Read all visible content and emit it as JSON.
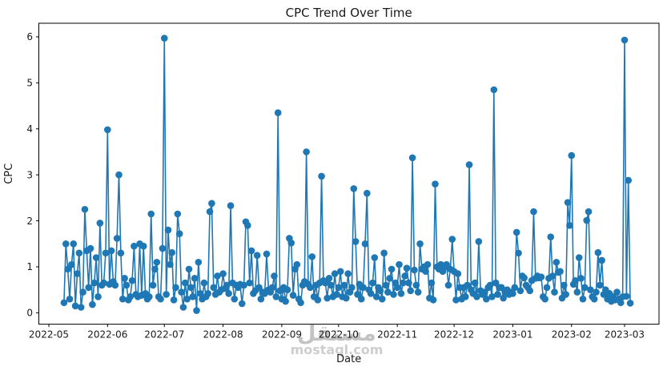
{
  "watermark": {
    "line1": "مستقل",
    "line2": "mostaql.com"
  },
  "chart_data": {
    "type": "line",
    "title": "CPC Trend Over Time",
    "xlabel": "Date",
    "ylabel": "CPC",
    "legend": null,
    "grid": false,
    "line_color": "#1f77b4",
    "marker": "o",
    "start_date": "2022-05-09",
    "frequency": "daily",
    "x_tick_labels": [
      "2022-05",
      "2022-06",
      "2022-07",
      "2022-08",
      "2022-09",
      "2022-10",
      "2022-11",
      "2022-12",
      "2023-01",
      "2023-02",
      "2023-03"
    ],
    "y_ticks": [
      0,
      1,
      2,
      3,
      4,
      5,
      6
    ],
    "ylim": [
      -0.25,
      6.3
    ],
    "values": [
      0.22,
      1.5,
      0.95,
      0.3,
      1.05,
      1.5,
      0.15,
      0.85,
      1.3,
      0.12,
      0.45,
      2.25,
      1.35,
      0.55,
      1.4,
      0.18,
      0.65,
      1.2,
      0.35,
      1.95,
      0.6,
      0.65,
      1.3,
      3.98,
      0.62,
      1.35,
      0.68,
      0.6,
      1.62,
      3.0,
      1.3,
      0.3,
      0.75,
      0.6,
      0.28,
      0.35,
      0.7,
      1.45,
      0.4,
      0.35,
      1.5,
      0.38,
      1.45,
      0.42,
      0.3,
      0.35,
      2.15,
      0.6,
      0.95,
      1.1,
      0.35,
      0.3,
      1.4,
      5.97,
      0.4,
      1.8,
      1.05,
      1.31,
      0.28,
      0.55,
      2.15,
      1.72,
      0.45,
      0.12,
      0.65,
      0.3,
      0.95,
      0.55,
      0.35,
      0.75,
      0.05,
      1.1,
      0.42,
      0.3,
      0.65,
      0.35,
      0.42,
      2.2,
      2.38,
      0.55,
      0.4,
      0.8,
      0.45,
      0.5,
      0.85,
      0.53,
      0.6,
      0.42,
      2.33,
      0.65,
      0.3,
      0.6,
      0.55,
      0.62,
      0.2,
      0.6,
      1.98,
      1.9,
      0.65,
      1.35,
      0.42,
      0.48,
      1.25,
      0.55,
      0.3,
      0.45,
      0.42,
      1.28,
      0.5,
      0.45,
      0.55,
      0.8,
      0.35,
      4.35,
      0.48,
      0.3,
      0.55,
      0.25,
      0.5,
      1.62,
      1.52,
      0.38,
      0.95,
      1.05,
      0.3,
      0.22,
      0.6,
      0.68,
      3.5,
      0.62,
      0.55,
      1.22,
      0.35,
      0.6,
      0.28,
      0.65,
      2.97,
      0.7,
      0.65,
      0.32,
      0.75,
      0.6,
      0.35,
      0.85,
      0.4,
      0.55,
      0.9,
      0.35,
      0.6,
      0.32,
      0.85,
      0.45,
      0.55,
      2.7,
      1.55,
      0.4,
      0.62,
      0.3,
      0.55,
      1.5,
      2.6,
      0.5,
      0.42,
      0.65,
      1.2,
      0.35,
      0.55,
      0.48,
      0.3,
      1.3,
      0.6,
      0.45,
      0.75,
      0.95,
      0.4,
      0.65,
      0.55,
      1.05,
      0.42,
      0.65,
      0.8,
      0.97,
      0.65,
      0.48,
      3.37,
      0.93,
      0.6,
      0.45,
      1.5,
      0.95,
      1.0,
      0.9,
      1.05,
      0.32,
      0.65,
      0.28,
      2.8,
      1.0,
      0.95,
      1.05,
      0.9,
      1.0,
      1.05,
      0.6,
      0.95,
      1.6,
      0.9,
      0.28,
      0.85,
      0.55,
      0.3,
      0.55,
      0.35,
      0.6,
      3.22,
      0.5,
      0.42,
      0.65,
      0.35,
      1.55,
      0.48,
      0.4,
      0.45,
      0.3,
      0.55,
      0.6,
      0.35,
      4.85,
      0.65,
      0.4,
      0.55,
      0.55,
      0.32,
      0.45,
      0.5,
      0.4,
      0.45,
      0.42,
      0.55,
      1.75,
      1.3,
      0.48,
      0.8,
      0.76,
      0.6,
      0.55,
      0.48,
      0.7,
      2.2,
      0.75,
      0.8,
      0.76,
      0.78,
      0.35,
      0.3,
      0.55,
      0.75,
      1.65,
      0.8,
      0.45,
      1.1,
      0.88,
      0.9,
      0.32,
      0.6,
      0.4,
      2.4,
      1.9,
      3.42,
      0.62,
      0.7,
      0.45,
      1.2,
      0.75,
      0.3,
      0.55,
      2.01,
      2.2,
      0.5,
      0.35,
      0.3,
      0.45,
      1.31,
      0.6,
      1.14,
      0.4,
      0.5,
      0.3,
      0.42,
      0.25,
      0.35,
      0.28,
      0.45,
      0.3,
      0.22,
      0.35,
      5.93,
      0.36,
      2.88,
      0.21
    ]
  }
}
